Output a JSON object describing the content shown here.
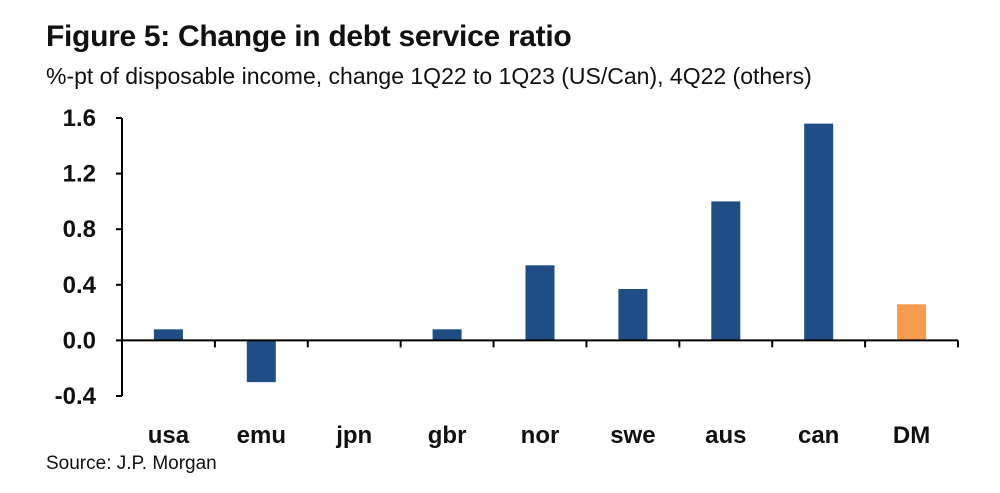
{
  "figure": {
    "title": "Figure 5: Change in debt service ratio",
    "subtitle": "%-pt of disposable income, change 1Q22 to 1Q23 (US/Can), 4Q22 (others)",
    "source": "Source: J.P. Morgan"
  },
  "chart_data": {
    "type": "bar",
    "title": "Figure 5: Change in debt service ratio",
    "subtitle": "%-pt of disposable income, change 1Q22 to 1Q23 (US/Can), 4Q22 (others)",
    "xlabel": "",
    "ylabel": "",
    "categories": [
      "usa",
      "emu",
      "jpn",
      "gbr",
      "nor",
      "swe",
      "aus",
      "can",
      "DM"
    ],
    "values": [
      0.08,
      -0.3,
      0.0,
      0.08,
      0.54,
      0.37,
      1.0,
      1.56,
      0.26
    ],
    "ylim": [
      -0.4,
      1.6
    ],
    "yticks": [
      -0.4,
      0.0,
      0.4,
      0.8,
      1.2,
      1.6
    ],
    "ytick_labels": [
      "-0.4",
      "0.0",
      "0.4",
      "0.8",
      "1.2",
      "1.6"
    ],
    "grid": false,
    "legend": "none",
    "colors": {
      "bar": "#1f4e86",
      "highlight": "#f79c4e",
      "axis": "#000000"
    },
    "highlight_category": "DM"
  }
}
